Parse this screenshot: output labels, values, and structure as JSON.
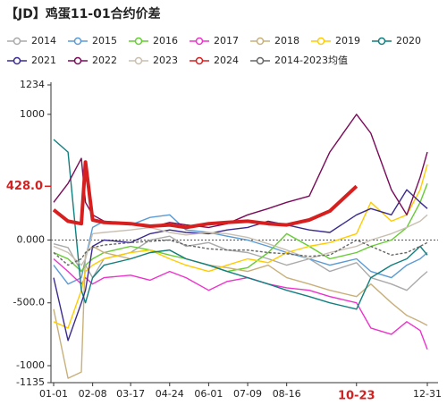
{
  "chart_data": {
    "type": "line",
    "title": "【JD】鸡蛋11-01合约价差",
    "x": [
      1,
      15,
      28,
      32,
      39,
      50,
      76,
      95,
      114,
      130,
      152,
      170,
      190,
      210,
      228,
      250,
      270,
      296,
      310,
      330,
      345,
      358,
      365
    ],
    "xlim": [
      1,
      365
    ],
    "xticks": [
      {
        "value": 1,
        "label": "01-01"
      },
      {
        "value": 39,
        "label": "02-08"
      },
      {
        "value": 76,
        "label": "03-17"
      },
      {
        "value": 114,
        "label": "04-24"
      },
      {
        "value": 152,
        "label": "06-01"
      },
      {
        "value": 190,
        "label": "07-09"
      },
      {
        "value": 228,
        "label": "08-16"
      },
      {
        "value": 296,
        "label": "10-23",
        "highlight": true
      },
      {
        "value": 365,
        "label": "12-31"
      }
    ],
    "ylim": [
      -1135,
      1234
    ],
    "yticks": [
      1234,
      1000,
      {
        "value": 0,
        "label": "0.000"
      },
      {
        "value": -500,
        "label": "-500.0"
      },
      -1000,
      -1135
    ],
    "annotation": {
      "label": "428.0",
      "value": 428
    },
    "series": [
      {
        "name": "2014",
        "color": "#aaaaaa",
        "values": [
          -30,
          -60,
          -250,
          -200,
          -300,
          -150,
          -100,
          0,
          30,
          -50,
          -20,
          -80,
          -100,
          -150,
          -200,
          -150,
          -250,
          -180,
          -300,
          -350,
          -400,
          -300,
          -250
        ]
      },
      {
        "name": "2015",
        "color": "#5b9bd5",
        "values": [
          -200,
          -350,
          -300,
          -150,
          100,
          150,
          120,
          180,
          200,
          80,
          60,
          30,
          0,
          -50,
          -100,
          -150,
          -200,
          -150,
          -250,
          -300,
          -200,
          -150,
          -100
        ]
      },
      {
        "name": "2016",
        "color": "#66cc33",
        "values": [
          -100,
          -150,
          -250,
          -200,
          -150,
          -100,
          -50,
          -80,
          -120,
          -150,
          -200,
          -250,
          -220,
          -100,
          50,
          -50,
          -150,
          -100,
          -50,
          0,
          100,
          300,
          450
        ]
      },
      {
        "name": "2017",
        "color": "#ee33cc",
        "values": [
          -150,
          -250,
          -350,
          -300,
          -350,
          -300,
          -280,
          -320,
          -250,
          -300,
          -400,
          -330,
          -300,
          -350,
          -380,
          -400,
          -450,
          -500,
          -700,
          -750,
          -650,
          -720,
          -870
        ]
      },
      {
        "name": "2018",
        "color": "#c8b07a",
        "values": [
          -550,
          -1100,
          -1050,
          -100,
          -50,
          -100,
          -150,
          -100,
          -80,
          -150,
          -200,
          -220,
          -250,
          -200,
          -300,
          -350,
          -400,
          -450,
          -350,
          -500,
          -600,
          -650,
          -680
        ]
      },
      {
        "name": "2019",
        "color": "#ffcc00",
        "values": [
          -650,
          -700,
          -400,
          -250,
          -200,
          -150,
          -100,
          -80,
          -150,
          -200,
          -250,
          -200,
          -150,
          -180,
          -100,
          -50,
          -20,
          50,
          300,
          150,
          200,
          400,
          600
        ]
      },
      {
        "name": "2020",
        "color": "#117f7f",
        "values": [
          800,
          700,
          -400,
          -500,
          -300,
          -200,
          -150,
          -100,
          -80,
          -150,
          -200,
          -250,
          -300,
          -350,
          -400,
          -450,
          -500,
          -550,
          -300,
          -200,
          -150,
          -50,
          -120
        ]
      },
      {
        "name": "2021",
        "color": "#3b2a8f",
        "values": [
          -300,
          -800,
          -500,
          -400,
          -50,
          0,
          -20,
          50,
          80,
          60,
          50,
          80,
          100,
          150,
          120,
          80,
          60,
          200,
          250,
          200,
          400,
          300,
          250
        ]
      },
      {
        "name": "2022",
        "color": "#7a0a5a",
        "values": [
          300,
          450,
          650,
          300,
          200,
          150,
          130,
          100,
          140,
          120,
          100,
          130,
          200,
          250,
          300,
          350,
          700,
          1000,
          850,
          400,
          200,
          500,
          700
        ]
      },
      {
        "name": "2023",
        "color": "#c8bfb0",
        "values": [
          -50,
          -100,
          -200,
          -150,
          50,
          60,
          80,
          100,
          60,
          40,
          60,
          50,
          20,
          -30,
          -80,
          -150,
          -100,
          -50,
          0,
          50,
          100,
          150,
          200
        ]
      },
      {
        "name": "2024",
        "color": "#d62020",
        "width": 4,
        "values": [
          240,
          150,
          130,
          620,
          160,
          140,
          130,
          110,
          120,
          100,
          130,
          140,
          150,
          130,
          120,
          160,
          230,
          428,
          null,
          null,
          null,
          null,
          null
        ]
      },
      {
        "name": "2014-2023均值",
        "color": "#666666",
        "dashed": true,
        "values": [
          -100,
          -200,
          -150,
          -100,
          -60,
          -40,
          -20,
          -10,
          0,
          -40,
          -70,
          -80,
          -80,
          -100,
          -110,
          -130,
          -120,
          0,
          -50,
          -120,
          -100,
          -50,
          -20
        ]
      }
    ]
  }
}
